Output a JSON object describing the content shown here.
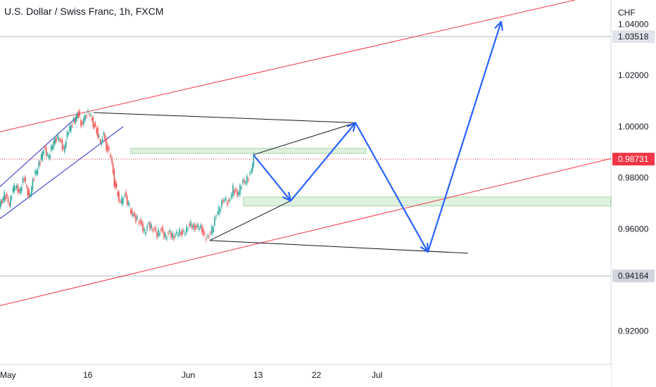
{
  "header": {
    "title": "U.S. Dollar / Swiss Franc, 1h, FXCM"
  },
  "chart_data": {
    "type": "candlestick",
    "title": "U.S. Dollar / Swiss Franc, 1h, FXCM",
    "currency_label": "CHF",
    "ylim": [
      0.907,
      1.0495
    ],
    "y_ticks": [
      {
        "value": 1.04,
        "label": "1.04000"
      },
      {
        "value": 1.02,
        "label": "1.02000"
      },
      {
        "value": 1.0,
        "label": "1.00000"
      },
      {
        "value": 0.98,
        "label": "0.98000"
      },
      {
        "value": 0.96,
        "label": "0.96000"
      },
      {
        "value": 0.92,
        "label": "0.92000"
      }
    ],
    "x_ticks": [
      "May",
      "16",
      "Jun",
      "13",
      "22",
      "Jul"
    ],
    "price_badges": [
      {
        "value": 1.03518,
        "label": "1.03518",
        "bg": "#e0e3eb",
        "fg": "#131722",
        "line": "#b2b5be",
        "dashed": false
      },
      {
        "value": 0.98731,
        "label": "0.98731",
        "bg": "#f23645",
        "fg": "#ffffff",
        "line": "#f23645",
        "dashed": true
      },
      {
        "value": 0.94164,
        "label": "0.94164",
        "bg": "#d1d4dc",
        "fg": "#131722",
        "line": "#b2b5be",
        "dashed": false
      }
    ],
    "price_path": [
      [
        0,
        0.9685
      ],
      [
        7,
        0.9735
      ],
      [
        14,
        0.97
      ],
      [
        21,
        0.977
      ],
      [
        28,
        0.9745
      ],
      [
        35,
        0.98
      ],
      [
        42,
        0.972
      ],
      [
        49,
        0.9805
      ],
      [
        56,
        0.985
      ],
      [
        63,
        0.9915
      ],
      [
        70,
        0.988
      ],
      [
        77,
        0.9945
      ],
      [
        84,
        0.996
      ],
      [
        91,
        0.991
      ],
      [
        98,
        0.9985
      ],
      [
        105,
        1.002
      ],
      [
        112,
        1.005
      ],
      [
        116,
        1.001
      ],
      [
        122,
        1.004
      ],
      [
        128,
        1.0055
      ],
      [
        133,
        1.001
      ],
      [
        138,
        0.9985
      ],
      [
        143,
        0.994
      ],
      [
        148,
        0.9965
      ],
      [
        152,
        0.992
      ],
      [
        158,
        0.989
      ],
      [
        163,
        0.978
      ],
      [
        168,
        0.974
      ],
      [
        172,
        0.97
      ],
      [
        178,
        0.9735
      ],
      [
        183,
        0.9695
      ],
      [
        188,
        0.966
      ],
      [
        194,
        0.964
      ],
      [
        200,
        0.9625
      ],
      [
        206,
        0.959
      ],
      [
        212,
        0.9615
      ],
      [
        218,
        0.96
      ],
      [
        224,
        0.958
      ],
      [
        230,
        0.9595
      ],
      [
        236,
        0.957
      ],
      [
        242,
        0.9585
      ],
      [
        248,
        0.9565
      ],
      [
        254,
        0.959
      ],
      [
        260,
        0.958
      ],
      [
        266,
        0.96
      ],
      [
        272,
        0.962
      ],
      [
        278,
        0.96
      ],
      [
        284,
        0.9615
      ],
      [
        290,
        0.958
      ],
      [
        296,
        0.9565
      ],
      [
        302,
        0.96
      ],
      [
        308,
        0.965
      ],
      [
        314,
        0.969
      ],
      [
        320,
        0.972
      ],
      [
        326,
        0.97
      ],
      [
        332,
        0.976
      ],
      [
        338,
        0.973
      ],
      [
        344,
        0.9775
      ],
      [
        350,
        0.979
      ],
      [
        356,
        0.981
      ],
      [
        361,
        0.988
      ]
    ],
    "resistance_channel": [
      {
        "x1": 0,
        "y1": 0.998,
        "x2": 817,
        "y2": 1.0495
      },
      {
        "x1": 0,
        "y1": 0.93,
        "x2": 868,
        "y2": 0.9875
      }
    ],
    "flag_lines": [
      {
        "x1": 0,
        "y1": 0.9765,
        "x2": 112,
        "y2": 1.0045
      },
      {
        "x1": 0,
        "y1": 0.964,
        "x2": 175,
        "y2": 1.0
      }
    ],
    "triangle_lines": [
      {
        "x1": 133,
        "y1": 1.0055,
        "x2": 505,
        "y2": 1.0015
      },
      {
        "x1": 298,
        "y1": 0.9555,
        "x2": 665,
        "y2": 0.9505
      },
      {
        "x1": 298,
        "y1": 0.9555,
        "x2": 413,
        "y2": 0.971
      },
      {
        "x1": 360,
        "y1": 0.989,
        "x2": 505,
        "y2": 1.0015
      }
    ],
    "zones": [
      {
        "x1": 186,
        "x2": 520,
        "y_top": 0.9915,
        "y_bottom": 0.9895
      },
      {
        "x1": 346,
        "x2": 868,
        "y_top": 0.9725,
        "y_bottom": 0.969
      }
    ],
    "projection": [
      [
        360,
        0.989
      ],
      [
        413,
        0.971
      ],
      [
        505,
        1.0015
      ],
      [
        608,
        0.951
      ],
      [
        712,
        1.041
      ]
    ],
    "projection_arrows": [
      {
        "x": 413,
        "y": 0.971
      },
      {
        "x": 505,
        "y": 1.0015
      },
      {
        "x": 608,
        "y": 0.951
      },
      {
        "x": 712,
        "y": 1.041
      }
    ]
  }
}
